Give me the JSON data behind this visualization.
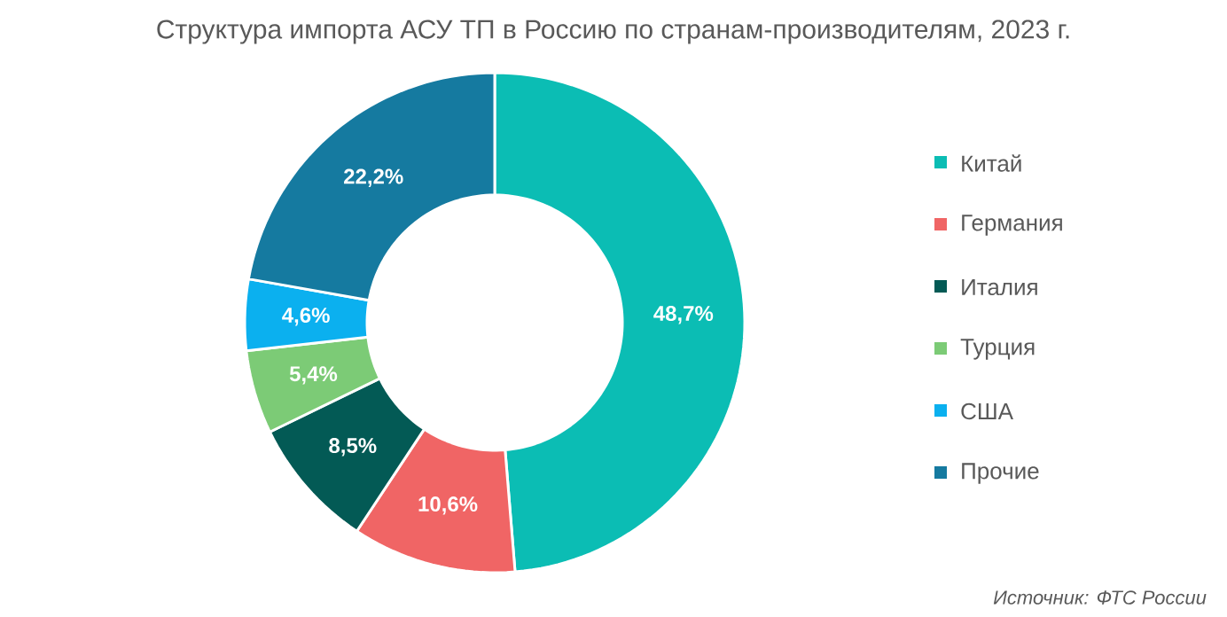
{
  "chart_data": {
    "type": "donut",
    "title": "Структура импорта АСУ ТП в Россию по странам-производителям, 2023 г.",
    "categories": [
      "Китай",
      "Германия",
      "Италия",
      "Турция",
      "США",
      "Прочие"
    ],
    "values": [
      48.7,
      10.6,
      8.5,
      5.4,
      4.6,
      22.2
    ],
    "colors": [
      "#0bbdb4",
      "#f06565",
      "#035a55",
      "#7ccb76",
      "#0bb0ef",
      "#157aa0"
    ],
    "value_labels": [
      "48,7%",
      "10,6%",
      "8,5%",
      "5,4%",
      "4,6%",
      "22,2%"
    ],
    "legend": "right",
    "annotations": [
      "Источник: ФТС России"
    ]
  }
}
